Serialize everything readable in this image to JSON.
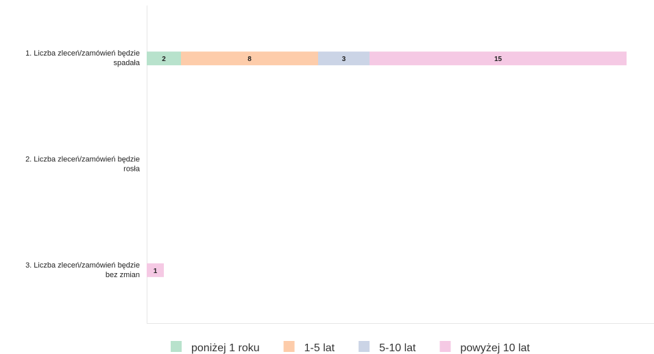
{
  "chart_data": {
    "type": "bar",
    "orientation": "horizontal",
    "stacked": true,
    "categories": [
      "1. Liczba zleceń/zamówień będzie spadała",
      "2. Liczba zleceń/zamówień będzie rosła",
      "3. Liczba zleceń/zamówień będzie bez zmian"
    ],
    "category_lines": [
      [
        "1. Liczba zleceń/zamówień będzie",
        "spadała"
      ],
      [
        "2. Liczba zleceń/zamówień będzie",
        "rosła"
      ],
      [
        "3. Liczba zleceń/zamówień będzie",
        "bez zmian"
      ]
    ],
    "series": [
      {
        "name": "poniżej 1 roku",
        "color": "#b8e2cc",
        "values": [
          2,
          0,
          0
        ]
      },
      {
        "name": "1-5 lat",
        "color": "#fdccaa",
        "values": [
          8,
          0,
          0
        ]
      },
      {
        "name": "5-10 lat",
        "color": "#cbd4e6",
        "values": [
          3,
          0,
          0
        ]
      },
      {
        "name": "powyżej 10 lat",
        "color": "#f5c9e4",
        "values": [
          15,
          0,
          1
        ]
      }
    ],
    "xlim": [
      0,
      29.6
    ],
    "grid": false,
    "legend_position": "bottom",
    "data_labels": true
  }
}
